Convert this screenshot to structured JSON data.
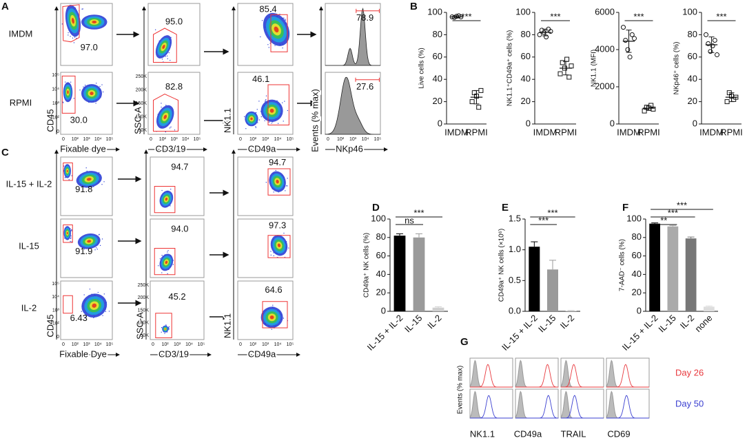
{
  "panel_letters": [
    "A",
    "B",
    "C",
    "D",
    "E",
    "F",
    "G"
  ],
  "flow_ticks": {
    "log": [
      "0",
      "10²",
      "10³",
      "10⁴",
      "10⁵"
    ],
    "scatter": [
      "50K",
      "100K",
      "150K",
      "200K",
      "250K"
    ]
  },
  "flow_a": {
    "rows": [
      "IMDM",
      "RPMI"
    ],
    "gates": [
      [
        "97.0",
        "95.0",
        "85.4",
        "78.9"
      ],
      [
        "30.0",
        "82.8",
        "46.1",
        "27.6"
      ]
    ],
    "x_labels": [
      "Fixable dye",
      "CD3/19",
      "CD49a",
      "NKp46"
    ],
    "y_labels": [
      "CD45",
      "SSC-A",
      "NK1.1",
      "Events (% max)"
    ]
  },
  "flow_c": {
    "rows": [
      "IL-15 + IL-2",
      "IL-15",
      "IL-2"
    ],
    "gates": [
      [
        "91.8",
        "94.7",
        "94.7"
      ],
      [
        "91.9",
        "94.0",
        "97.3"
      ],
      [
        "6.43",
        "45.2",
        "64.6"
      ]
    ],
    "x_labels": [
      "Fixable Dye",
      "CD3/19",
      "CD49a"
    ],
    "y_labels": [
      "CD45",
      "SSC-A",
      "NK1.1"
    ]
  },
  "histo_g": {
    "markers": [
      "NK1.1",
      "CD49a",
      "TRAIL",
      "CD69"
    ],
    "rows": [
      "Day 26",
      "Day 50"
    ],
    "colors": [
      "#e8383d",
      "#3a3fd0"
    ],
    "y_label": "Events (% max)"
  },
  "chart_data": [
    {
      "type": "dot",
      "ylabel": "Live cells (%)",
      "categories": [
        "IMDM",
        "RPMI"
      ],
      "values": [
        [
          96,
          95.5,
          96.5,
          97,
          96
        ],
        [
          20,
          28,
          25,
          15,
          30
        ]
      ],
      "means": [
        96,
        24
      ],
      "errors": [
        1,
        6
      ],
      "markers": [
        "circle",
        "square"
      ],
      "ylim": [
        0,
        100
      ],
      "yticks": [
        0,
        20,
        40,
        60,
        80,
        100
      ],
      "annotations": [
        {
          "text": "***",
          "from": 0,
          "to": 1
        }
      ]
    },
    {
      "type": "dot",
      "ylabel": "NK1.1⁺CD49a⁺ cells (%)",
      "categories": [
        "IMDM",
        "RPMI"
      ],
      "values": [
        [
          80,
          84,
          82,
          78,
          85,
          83
        ],
        [
          45,
          55,
          50,
          58,
          42,
          52
        ]
      ],
      "means": [
        82,
        50
      ],
      "errors": [
        3,
        6
      ],
      "markers": [
        "circle",
        "square"
      ],
      "ylim": [
        0,
        100
      ],
      "yticks": [
        0,
        20,
        40,
        60,
        80,
        100
      ],
      "annotations": [
        {
          "text": "***",
          "from": 0,
          "to": 1
        }
      ]
    },
    {
      "type": "dot",
      "ylabel": "NK1.1 (MFI)",
      "categories": [
        "IMDM",
        "RPMI"
      ],
      "values": [
        [
          5200,
          4500,
          4000,
          3600,
          4800,
          4600
        ],
        [
          700,
          900,
          850,
          1000,
          800
        ]
      ],
      "means": [
        4450,
        850
      ],
      "errors": [
        600,
        120
      ],
      "markers": [
        "circle",
        "square"
      ],
      "ylim": [
        0,
        6000
      ],
      "yticks": [
        0,
        2000,
        4000,
        6000
      ],
      "annotations": [
        {
          "text": "***",
          "from": 0,
          "to": 1
        }
      ]
    },
    {
      "type": "dot",
      "ylabel": "NKp46⁺ cells (%)",
      "categories": [
        "IMDM",
        "RPMI"
      ],
      "values": [
        [
          80,
          72,
          65,
          70,
          75,
          62
        ],
        [
          20,
          28,
          25,
          22,
          24
        ]
      ],
      "means": [
        71,
        24
      ],
      "errors": [
        7,
        4
      ],
      "markers": [
        "circle",
        "square"
      ],
      "ylim": [
        0,
        100
      ],
      "yticks": [
        0,
        20,
        40,
        60,
        80,
        100
      ],
      "annotations": [
        {
          "text": "***",
          "from": 0,
          "to": 1
        }
      ]
    },
    {
      "type": "bar",
      "ylabel": "CD49a⁺ NK cells (%)",
      "categories": [
        "IL-15 + IL-2",
        "IL-15",
        "IL-2"
      ],
      "values": [
        82,
        80,
        4
      ],
      "errors": [
        2,
        4,
        1
      ],
      "colors": [
        "#000000",
        "#9a9a9a",
        "#cfcfcf"
      ],
      "ylim": [
        0,
        100
      ],
      "yticks": [
        0,
        20,
        40,
        60,
        80,
        100
      ],
      "annotations": [
        {
          "text": "ns",
          "from": 0,
          "to": 1
        },
        {
          "text": "***",
          "from": 0,
          "to": 2
        }
      ]
    },
    {
      "type": "bar",
      "ylabel": "CD49a⁺ NK cells (×10⁶)",
      "categories": [
        "IL-15 + IL-2",
        "IL-15",
        "IL-2"
      ],
      "values": [
        1.05,
        0.68,
        0.01
      ],
      "errors": [
        0.08,
        0.15,
        0.005
      ],
      "colors": [
        "#000000",
        "#9a9a9a",
        "#cfcfcf"
      ],
      "ylim": [
        0,
        1.5
      ],
      "yticks": [
        {
          "value": 0,
          "label": "0.0"
        },
        0.5,
        {
          "value": 1,
          "label": "1.0"
        },
        1.5
      ],
      "annotations": [
        {
          "text": "***",
          "from": 0,
          "to": 1
        },
        {
          "text": "***",
          "from": 0,
          "to": 2
        }
      ]
    },
    {
      "type": "bar",
      "ylabel": "7-AAD⁻ cells (%)",
      "categories": [
        "IL-15 + IL-2",
        "IL-15",
        "IL-2",
        "none"
      ],
      "values": [
        95,
        92,
        79,
        5
      ],
      "errors": [
        0.8,
        1,
        1.5,
        0.8
      ],
      "colors": [
        "#000000",
        "#aaaaaa",
        "#777777",
        "#dddddd"
      ],
      "ylim": [
        0,
        100
      ],
      "yticks": [
        0,
        20,
        40,
        60,
        80,
        100
      ],
      "annotations": [
        {
          "text": "**",
          "from": 0,
          "to": 1
        },
        {
          "text": "***",
          "from": 0,
          "to": 2
        },
        {
          "text": "***",
          "from": 0,
          "to": 3
        }
      ]
    }
  ]
}
